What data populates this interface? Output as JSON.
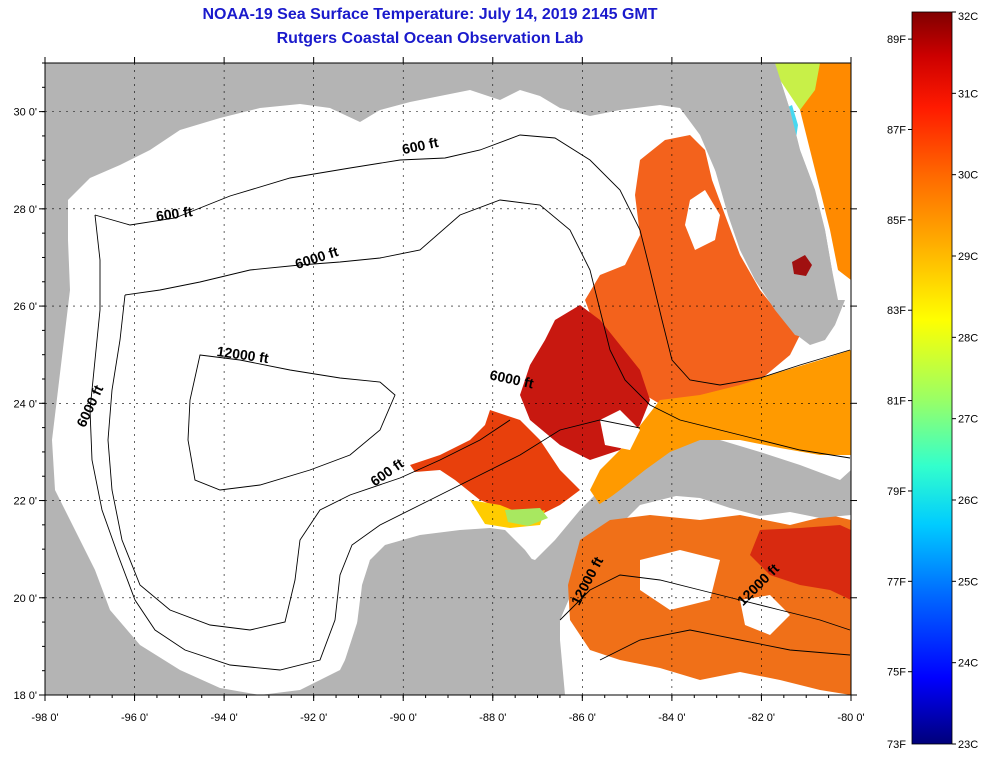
{
  "header": {
    "title": "NOAA-19 Sea Surface Temperature:  July 14, 2019 2145 GMT",
    "subtitle": "Rutgers Coastal Ocean Observation Lab"
  },
  "map": {
    "lon_labels": [
      "-98 0'",
      "-96 0'",
      "-94 0'",
      "-92 0'",
      "-90 0'",
      "-88 0'",
      "-86 0'",
      "-84 0'",
      "-82 0'",
      "-80 0'"
    ],
    "lon_values": [
      -98,
      -96,
      -94,
      -92,
      -90,
      -88,
      -86,
      -84,
      -82,
      -80
    ],
    "lat_labels": [
      "30 0'",
      "28 0'",
      "26 0'",
      "24 0'",
      "22 0'",
      "20 0'",
      "18 0'"
    ],
    "lat_values": [
      30,
      28,
      26,
      24,
      22,
      20,
      18
    ],
    "lon_range": [
      -98,
      -80
    ],
    "lat_range": [
      18,
      31
    ],
    "contour_labels": [
      {
        "text": "600 ft",
        "lon": -89.6,
        "lat": 29.2,
        "angle": -12
      },
      {
        "text": "600 ft",
        "lon": -95.1,
        "lat": 27.8,
        "angle": -8
      },
      {
        "text": "6000 ft",
        "lon": -91.9,
        "lat": 26.9,
        "angle": -18
      },
      {
        "text": "12000 ft",
        "lon": -93.6,
        "lat": 24.9,
        "angle": 8
      },
      {
        "text": "6000 ft",
        "lon": -96.9,
        "lat": 23.9,
        "angle": -65
      },
      {
        "text": "6000 ft",
        "lon": -87.6,
        "lat": 24.4,
        "angle": 12
      },
      {
        "text": "600 ft",
        "lon": -90.3,
        "lat": 22.5,
        "angle": -35
      },
      {
        "text": "12000 ft",
        "lon": -85.8,
        "lat": 20.3,
        "angle": -62
      },
      {
        "text": "12000 ft",
        "lon": -82.0,
        "lat": 20.2,
        "angle": -45
      }
    ]
  },
  "colorbar": {
    "f_labels": [
      "89F",
      "87F",
      "85F",
      "83F",
      "81F",
      "79F",
      "77F",
      "75F",
      "73F"
    ],
    "c_labels": [
      "32C",
      "31C",
      "30C",
      "29C",
      "28C",
      "27C",
      "26C",
      "25C",
      "24C",
      "23C"
    ],
    "c_range": [
      23,
      32
    ],
    "colors": [
      "#00007a",
      "#0000ff",
      "#0066ff",
      "#00ccff",
      "#33ffcc",
      "#99ff66",
      "#ffff00",
      "#ffb000",
      "#ff6600",
      "#ff1a00",
      "#cc0000",
      "#800000"
    ]
  },
  "colors": {
    "land": "#b4b4b4",
    "ocean_nodata": "#ffffff",
    "title": "#1a1acc"
  }
}
